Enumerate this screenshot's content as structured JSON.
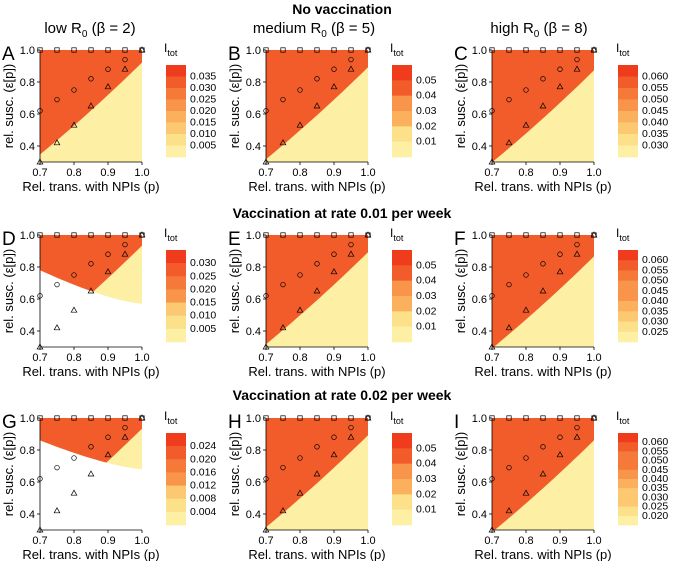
{
  "figure": {
    "column_titles": [
      {
        "pre": "low R",
        "sub": "0",
        "post": " (β = 2)"
      },
      {
        "pre": "medium R",
        "sub": "0",
        "post": " (β = 5)"
      },
      {
        "pre": "high R",
        "sub": "0",
        "post": " (β = 8)"
      }
    ],
    "row_titles": [
      "No vaccination",
      "Vaccination at rate 0.01 per week",
      "Vaccination at rate 0.02 per week"
    ],
    "panel_letters": [
      "A",
      "B",
      "C",
      "D",
      "E",
      "F",
      "G",
      "H",
      "I"
    ],
    "xlabel": "Rel. trans. with NPIs (p)",
    "ylabel": "rel. susc. (ε[p])",
    "legend_title": {
      "main": "I",
      "sub": "tot"
    },
    "x_ticks": [
      "0.7",
      "0.8",
      "0.9",
      "1.0"
    ],
    "y_ticks": [
      "0.4",
      "0.6",
      "0.8",
      "1.0"
    ]
  },
  "colors": {
    "palette_low_to_high": [
      "#fdefa4",
      "#fde08a",
      "#fcc872",
      "#fbb05e",
      "#f8954a",
      "#f57a3a",
      "#f25c2a",
      "#ee3c1c"
    ]
  },
  "chart_data": [
    {
      "panel": "A",
      "type": "heatmap",
      "xlim": [
        0.7,
        1.0
      ],
      "ylim": [
        0.3,
        1.0
      ],
      "legend_ticks": [
        "0.035",
        "0.030",
        "0.025",
        "0.020",
        "0.015",
        "0.010",
        "0.005"
      ],
      "feasible_region": "all",
      "scale": "gentle"
    },
    {
      "panel": "B",
      "type": "heatmap",
      "xlim": [
        0.7,
        1.0
      ],
      "ylim": [
        0.3,
        1.0
      ],
      "legend_ticks": [
        "0.05",
        "0.04",
        "0.03",
        "0.02",
        "0.01"
      ],
      "feasible_region": "all",
      "scale": "strong"
    },
    {
      "panel": "C",
      "type": "heatmap",
      "xlim": [
        0.7,
        1.0
      ],
      "ylim": [
        0.3,
        1.0
      ],
      "legend_ticks": [
        "0.060",
        "0.055",
        "0.050",
        "0.045",
        "0.040",
        "0.035",
        "0.030"
      ],
      "feasible_region": "all",
      "scale": "strong"
    },
    {
      "panel": "D",
      "type": "heatmap",
      "xlim": [
        0.7,
        1.0
      ],
      "ylim": [
        0.3,
        1.0
      ],
      "legend_ticks": [
        "0.030",
        "0.025",
        "0.020",
        "0.015",
        "0.010",
        "0.005"
      ],
      "feasible_region": "upper",
      "scale": "gentle"
    },
    {
      "panel": "E",
      "type": "heatmap",
      "xlim": [
        0.7,
        1.0
      ],
      "ylim": [
        0.3,
        1.0
      ],
      "legend_ticks": [
        "0.05",
        "0.04",
        "0.03",
        "0.02",
        "0.01"
      ],
      "feasible_region": "all",
      "scale": "strong"
    },
    {
      "panel": "F",
      "type": "heatmap",
      "xlim": [
        0.7,
        1.0
      ],
      "ylim": [
        0.3,
        1.0
      ],
      "legend_ticks": [
        "0.060",
        "0.055",
        "0.050",
        "0.045",
        "0.040",
        "0.035",
        "0.030",
        "0.025"
      ],
      "feasible_region": "all",
      "scale": "strong"
    },
    {
      "panel": "G",
      "type": "heatmap",
      "xlim": [
        0.7,
        1.0
      ],
      "ylim": [
        0.3,
        1.0
      ],
      "legend_ticks": [
        "0.024",
        "0.020",
        "0.016",
        "0.012",
        "0.008",
        "0.004"
      ],
      "feasible_region": "upper-narrow",
      "scale": "gentle"
    },
    {
      "panel": "H",
      "type": "heatmap",
      "xlim": [
        0.7,
        1.0
      ],
      "ylim": [
        0.3,
        1.0
      ],
      "legend_ticks": [
        "0.05",
        "0.04",
        "0.03",
        "0.02",
        "0.01"
      ],
      "feasible_region": "all",
      "scale": "strong"
    },
    {
      "panel": "I",
      "type": "heatmap",
      "xlim": [
        0.7,
        1.0
      ],
      "ylim": [
        0.3,
        1.0
      ],
      "legend_ticks": [
        "0.060",
        "0.055",
        "0.050",
        "0.045",
        "0.040",
        "0.035",
        "0.030",
        "0.025",
        "0.020"
      ],
      "feasible_region": "all",
      "scale": "strong"
    }
  ],
  "markers": {
    "squares": [
      [
        0.7,
        1.0
      ],
      [
        0.75,
        1.0
      ],
      [
        0.8,
        1.0
      ],
      [
        0.85,
        1.0
      ],
      [
        0.9,
        1.0
      ],
      [
        0.95,
        1.0
      ],
      [
        1.0,
        1.0
      ]
    ],
    "circles": [
      [
        0.7,
        0.62
      ],
      [
        0.75,
        0.69
      ],
      [
        0.8,
        0.75
      ],
      [
        0.85,
        0.82
      ],
      [
        0.9,
        0.88
      ],
      [
        0.95,
        0.94
      ],
      [
        1.0,
        1.0
      ]
    ],
    "triangles": [
      [
        0.7,
        0.3
      ],
      [
        0.75,
        0.42
      ],
      [
        0.8,
        0.53
      ],
      [
        0.85,
        0.65
      ],
      [
        0.9,
        0.77
      ],
      [
        0.95,
        0.88
      ],
      [
        1.0,
        1.0
      ]
    ]
  }
}
